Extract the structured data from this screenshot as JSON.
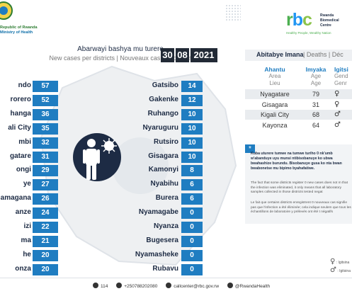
{
  "header": {
    "country_line1": "Republic of Rwanda",
    "country_line2": "Ministry of Health",
    "title_rw": "Abarwayi bashya mu turere",
    "title_sub": "New cases per districts  |  Nouveaux cas par district",
    "date": [
      "30",
      "08",
      "2021"
    ]
  },
  "brand": {
    "rbc_r": "r",
    "rbc_b": "b",
    "rbc_c": "c",
    "side_l1": "Rwanda",
    "side_l2": "Biomedical",
    "side_l3": "Centre",
    "tagline": "Healthy People, Wealthy Nation"
  },
  "districts_left": [
    {
      "name": "ndo",
      "cases": "57"
    },
    {
      "name": "rorero",
      "cases": "52"
    },
    {
      "name": "hanga",
      "cases": "36"
    },
    {
      "name": "ali City",
      "cases": "35"
    },
    {
      "name": "mbi",
      "cases": "32"
    },
    {
      "name": "gatare",
      "cases": "31"
    },
    {
      "name": "ongi",
      "cases": "29"
    },
    {
      "name": "ye",
      "cases": "27"
    },
    {
      "name": "amagana",
      "cases": "26"
    },
    {
      "name": "anze",
      "cases": "24"
    },
    {
      "name": "izi",
      "cases": "22"
    },
    {
      "name": "ma",
      "cases": "21"
    },
    {
      "name": "he",
      "cases": "20"
    },
    {
      "name": "onza",
      "cases": "20"
    }
  ],
  "districts_right": [
    {
      "name": "Gatsibo",
      "cases": "14"
    },
    {
      "name": "Gakenke",
      "cases": "12"
    },
    {
      "name": "Ruhango",
      "cases": "10"
    },
    {
      "name": "Nyaruguru",
      "cases": "10"
    },
    {
      "name": "Rutsiro",
      "cases": "10"
    },
    {
      "name": "Gisagara",
      "cases": "10"
    },
    {
      "name": "Kamonyi",
      "cases": "8"
    },
    {
      "name": "Nyabihu",
      "cases": "6"
    },
    {
      "name": "Burera",
      "cases": "6"
    },
    {
      "name": "Nyamagabe",
      "cases": "0"
    },
    {
      "name": "Nyanza",
      "cases": "0"
    },
    {
      "name": "Bugesera",
      "cases": "0"
    },
    {
      "name": "Nyamasheke",
      "cases": "0"
    },
    {
      "name": "Rubavu",
      "cases": "0"
    }
  ],
  "deaths_panel": {
    "tab_active": "Abitabye Imana",
    "tab_rest": "|  Deaths  |  Déc",
    "col_area": {
      "rw": "Ahantu",
      "en": "Area",
      "fr": "Lieu"
    },
    "col_age": {
      "rw": "Imyaka",
      "en": "Age",
      "fr": "Age"
    },
    "col_gender": {
      "rw": "Igitsi",
      "en": "Gend",
      "fr": "Genr"
    },
    "rows": [
      {
        "area": "Nyagatare",
        "age": "79",
        "gender": "♀"
      },
      {
        "area": "Gisagara",
        "age": "31",
        "gender": "♀"
      },
      {
        "area": "Kigali City",
        "age": "68",
        "gender": "♂"
      },
      {
        "area": "Kayonza",
        "age": "64",
        "gender": "♂"
      }
    ]
  },
  "note": {
    "star": "*",
    "bold": "Kuba uturere tumwe na tumwe turiho 0 nk'umb w'abanduye  uyu munsi ntibisobanuye ko ubwa bwahashize burundu. Bisobanuye gusa ko nta bwan bwabonetse mu bipimo byahafatiwe.",
    "en": "The fact that some districts register 0 new cases does not m that the infection was eliminated, it only means that all laboratory samples collected in those districts tested negat",
    "fr": "Le fait que certains districts enregistrent 0 nouveaux cas signifie pas que l'infection a été éliminée; cela indique seulem que tous les échantillons de laboratoire y prélevés ont été t négatifs"
  },
  "legend": {
    "female": ": Igitsina",
    "male": ": Igitsina"
  },
  "footer": {
    "phone": "114",
    "whatsapp": "+250788202080",
    "email": "callcenter@rbc.gov.rw",
    "social": "@RwandaHealth"
  }
}
